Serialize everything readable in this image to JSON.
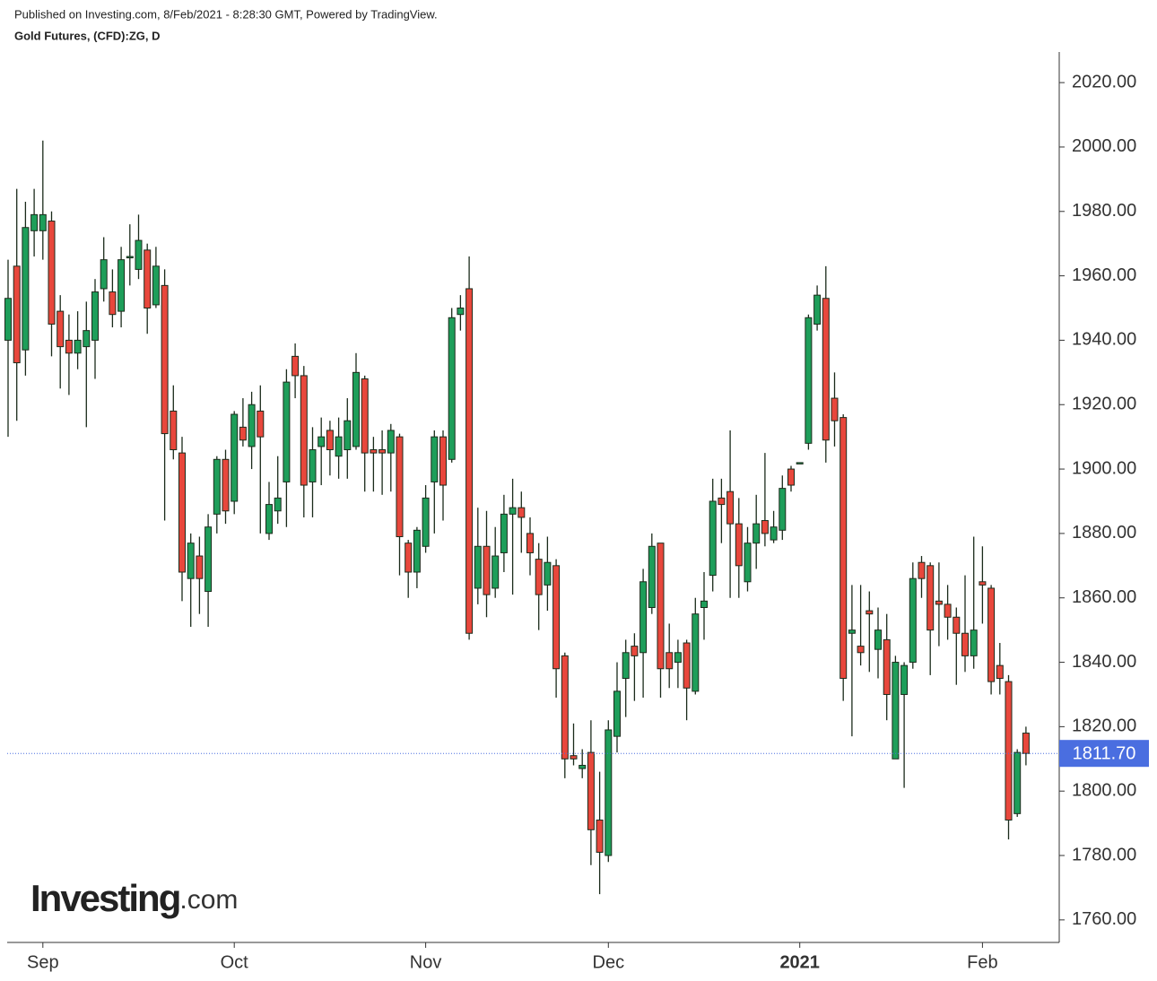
{
  "header": {
    "published": "Published on Investing.com, 8/Feb/2021 - 8:28:30 GMT, Powered by TradingView.",
    "instrument": "Gold Futures, (CFD):ZG, D"
  },
  "logo": {
    "brand": "Investing",
    "suffix": ".com"
  },
  "chart_data": {
    "type": "candlestick",
    "categories": [
      null,
      null,
      null,
      null,
      "Sep",
      null,
      null,
      null,
      null,
      null,
      null,
      null,
      null,
      null,
      null,
      null,
      null,
      null,
      null,
      null,
      null,
      null,
      null,
      null,
      null,
      null,
      "Oct",
      null,
      null,
      null,
      null,
      null,
      null,
      null,
      null,
      null,
      null,
      null,
      null,
      null,
      null,
      null,
      null,
      null,
      null,
      null,
      null,
      null,
      "Nov",
      null,
      null,
      null,
      null,
      null,
      null,
      null,
      null,
      null,
      null,
      null,
      null,
      null,
      null,
      null,
      null,
      null,
      null,
      null,
      null,
      "Dec",
      null,
      null,
      null,
      null,
      null,
      null,
      null,
      null,
      null,
      null,
      null,
      null,
      null,
      null,
      null,
      null,
      null,
      null,
      null,
      null,
      null,
      "2021",
      null,
      null,
      null,
      null,
      null,
      null,
      null,
      null,
      null,
      null,
      null,
      null,
      null,
      null,
      null,
      null,
      null,
      null,
      null,
      null,
      "Feb",
      null,
      null,
      null,
      null,
      null
    ],
    "open": [
      1940,
      1963,
      1937,
      1974,
      1974,
      1977,
      1949,
      1940,
      1936,
      1938,
      1940,
      1956,
      1955,
      1949,
      1966,
      1962,
      1968,
      1951,
      1957,
      1918,
      1905,
      1866,
      1873,
      1862,
      1886,
      1903,
      1890,
      1913,
      1907,
      1918,
      1880,
      1887,
      1896,
      1935,
      1929,
      1896,
      1907,
      1912,
      1904,
      1906,
      1907,
      1928,
      1906,
      1906,
      1905,
      1910,
      1877,
      1868,
      1876,
      1896,
      1910,
      1903,
      1948,
      1956,
      1863,
      1876,
      1863,
      1874,
      1886,
      1888,
      1880,
      1872,
      1864,
      1870,
      1842,
      1811,
      1807,
      1812,
      1791,
      1780,
      1817,
      1835,
      1845,
      1843,
      1857,
      1877,
      1843,
      1840,
      1846,
      1831,
      1857,
      1867,
      1891,
      1893,
      1883,
      1865,
      1877,
      1884,
      1878,
      1881,
      1900,
      1902,
      1908,
      1945,
      1953,
      1922,
      1916,
      1849,
      1845,
      1856,
      1844,
      1847,
      1810,
      1830,
      1840,
      1871,
      1870,
      1859,
      1858,
      1854,
      1849,
      1842,
      1865,
      1863,
      1839,
      1834,
      1793,
      1818
    ],
    "high": [
      1965,
      1987,
      1983,
      1987,
      2002,
      1980,
      1954,
      1948,
      1949,
      1952,
      1959,
      1972,
      1962,
      1969,
      1976,
      1979,
      1970,
      1969,
      1962,
      1926,
      1910,
      1880,
      1879,
      1886,
      1904,
      1906,
      1918,
      1922,
      1924,
      1926,
      1896,
      1904,
      1931,
      1939,
      1932,
      1913,
      1916,
      1915,
      1916,
      1922,
      1936,
      1929,
      1910,
      1912,
      1914,
      1911,
      1878,
      1882,
      1895,
      1912,
      1912,
      1950,
      1954,
      1966,
      1888,
      1887,
      1882,
      1892,
      1897,
      1893,
      1885,
      1877,
      1879,
      1872,
      1843,
      1821,
      1813,
      1822,
      1806,
      1822,
      1840,
      1847,
      1849,
      1869,
      1880,
      1877,
      1852,
      1847,
      1847,
      1860,
      1868,
      1897,
      1897,
      1912,
      1891,
      1882,
      1892,
      1905,
      1887,
      1898,
      1901,
      1902,
      1948,
      1957,
      1963,
      1930,
      1917,
      1864,
      1864,
      1862,
      1857,
      1855,
      1842,
      1840,
      1871,
      1873,
      1871,
      1871,
      1864,
      1857,
      1867,
      1879,
      1876,
      1864,
      1846,
      1836,
      1813,
      1820
    ],
    "low": [
      1910,
      1915,
      1929,
      1966,
      1965,
      1935,
      1925,
      1923,
      1931,
      1913,
      1928,
      1952,
      1944,
      1944,
      1957,
      1959,
      1942,
      1950,
      1884,
      1903,
      1859,
      1851,
      1855,
      1851,
      1880,
      1883,
      1886,
      1907,
      1900,
      1880,
      1878,
      1883,
      1882,
      1922,
      1885,
      1885,
      1895,
      1898,
      1897,
      1897,
      1906,
      1893,
      1893,
      1892,
      1893,
      1867,
      1860,
      1863,
      1874,
      1880,
      1884,
      1902,
      1943,
      1847,
      1858,
      1854,
      1860,
      1868,
      1861,
      1874,
      1867,
      1850,
      1856,
      1829,
      1804,
      1808,
      1804,
      1777,
      1768,
      1778,
      1812,
      1823,
      1828,
      1829,
      1855,
      1829,
      1832,
      1832,
      1822,
      1830,
      1847,
      1862,
      1877,
      1860,
      1860,
      1862,
      1869,
      1876,
      1877,
      1878,
      1893,
      1902,
      1906,
      1943,
      1902,
      1907,
      1828,
      1817,
      1839,
      1837,
      1835,
      1822,
      1810,
      1801,
      1838,
      1860,
      1836,
      1845,
      1847,
      1833,
      1837,
      1838,
      1852,
      1830,
      1830,
      1785,
      1792,
      1808
    ],
    "close": [
      1953,
      1933,
      1975,
      1979,
      1979,
      1945,
      1938,
      1936,
      1940,
      1943,
      1955,
      1965,
      1948,
      1965,
      1966,
      1971,
      1950,
      1963,
      1911,
      1906,
      1868,
      1877,
      1866,
      1882,
      1903,
      1887,
      1917,
      1909,
      1920,
      1910,
      1889,
      1891,
      1927,
      1929,
      1895,
      1906,
      1910,
      1906,
      1910,
      1915,
      1930,
      1905,
      1905,
      1905,
      1912,
      1879,
      1868,
      1881,
      1891,
      1910,
      1895,
      1947,
      1950,
      1849,
      1876,
      1861,
      1873,
      1886,
      1888,
      1885,
      1874,
      1861,
      1871,
      1838,
      1810,
      1810,
      1808,
      1788,
      1781,
      1819,
      1831,
      1843,
      1842,
      1865,
      1876,
      1838,
      1838,
      1843,
      1832,
      1855,
      1859,
      1890,
      1889,
      1883,
      1870,
      1877,
      1883,
      1880,
      1882,
      1894,
      1895,
      1902,
      1947,
      1954,
      1909,
      1915,
      1835,
      1850,
      1843,
      1855,
      1850,
      1830,
      1840,
      1839,
      1866,
      1866,
      1850,
      1858,
      1854,
      1849,
      1842,
      1850,
      1864,
      1834,
      1835,
      1791,
      1812,
      1811.7
    ],
    "up_color": "#1e9e5a",
    "down_color": "#e8473c",
    "outline_color": "#1b2b1b",
    "current_price": {
      "value": 1811.7,
      "label": "1811.70"
    },
    "current_price_color": "#4a6ee0",
    "ylim": [
      1753,
      2029.5
    ],
    "yticks": [
      {
        "value": 1760,
        "label": "1760.00"
      },
      {
        "value": 1780,
        "label": "1780.00"
      },
      {
        "value": 1800,
        "label": "1800.00"
      },
      {
        "value": 1820,
        "label": "1820.00"
      },
      {
        "value": 1840,
        "label": "1840.00"
      },
      {
        "value": 1860,
        "label": "1860.00"
      },
      {
        "value": 1880,
        "label": "1880.00"
      },
      {
        "value": 1900,
        "label": "1900.00"
      },
      {
        "value": 1920,
        "label": "1920.00"
      },
      {
        "value": 1940,
        "label": "1940.00"
      },
      {
        "value": 1960,
        "label": "1960.00"
      },
      {
        "value": 1980,
        "label": "1980.00"
      },
      {
        "value": 2000,
        "label": "2000.00"
      },
      {
        "value": 2020,
        "label": "2020.00"
      }
    ],
    "bold_categories": [
      "2021"
    ],
    "grid": false
  }
}
